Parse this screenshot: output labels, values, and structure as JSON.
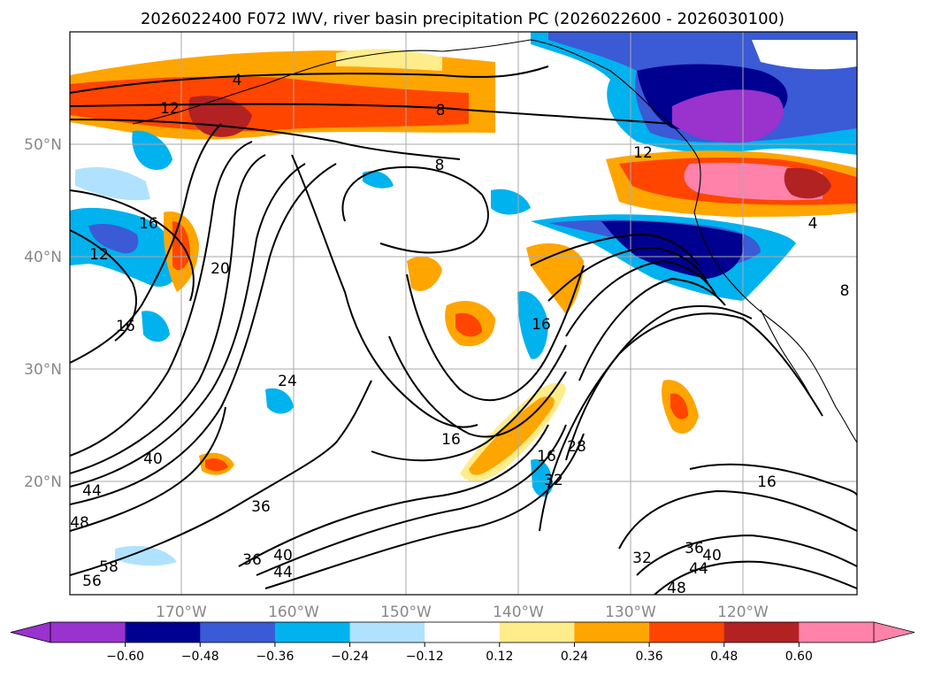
{
  "title": "2026022400 F072 IWV, river basin precipitation PC (2026022600 - 2026030100)",
  "map": {
    "lon_range": [
      -180,
      -110
    ],
    "lat_range": [
      10,
      60
    ],
    "lat_labels": [
      "50°N",
      "40°N",
      "30°N",
      "20°N"
    ],
    "lon_labels": [
      "170°W",
      "160°W",
      "150°W",
      "140°W",
      "130°W",
      "120°W"
    ],
    "grid": true
  },
  "contour_labels": [
    "4",
    "12",
    "8",
    "8",
    "12",
    "16",
    "12",
    "20",
    "16",
    "24",
    "16",
    "16",
    "40",
    "44",
    "48",
    "36",
    "36",
    "40",
    "44",
    "58",
    "56",
    "16",
    "28",
    "32",
    "32",
    "36",
    "40",
    "44",
    "48",
    "16",
    "4",
    "8"
  ],
  "colorbar": {
    "ticks": [
      "−0.60",
      "−0.48",
      "−0.36",
      "−0.24",
      "−0.12",
      "0.12",
      "0.24",
      "0.36",
      "0.48",
      "0.60"
    ],
    "colors": [
      "#9a32cd",
      "#000090",
      "#3a5ad6",
      "#00b2ee",
      "#b0e2ff",
      "#ffffff",
      "#ffec8b",
      "#ffa500",
      "#ff4500",
      "#b22222",
      "#ff82ab",
      "#ff82ab"
    ]
  }
}
